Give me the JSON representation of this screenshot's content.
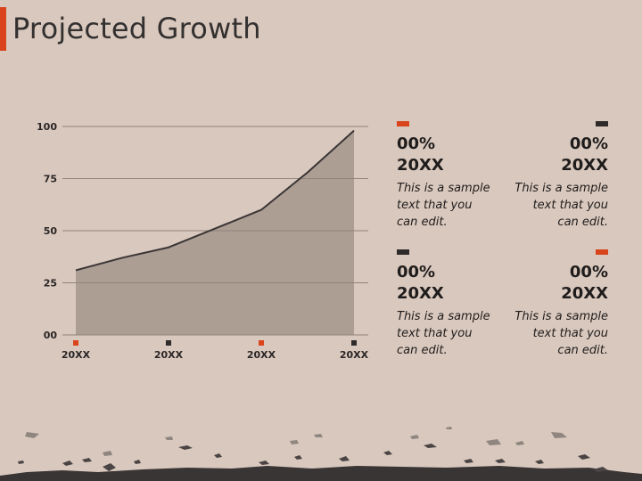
{
  "title": "Projected Growth",
  "colors": {
    "background": "#d9c8bd",
    "accent": "#d9441c",
    "dark": "#2f2b2b",
    "area_fill": "#ad9e94",
    "line": "#3a3535",
    "grid": "#8f847d"
  },
  "chart_data": {
    "type": "area",
    "title": "",
    "xlabel": "",
    "ylabel": "",
    "ylim": [
      0,
      100
    ],
    "yticks": [
      0,
      25,
      50,
      75,
      100
    ],
    "ytick_labels": [
      "00",
      "25",
      "50",
      "75",
      "100"
    ],
    "categories": [
      "20XX",
      "20XX",
      "20XX",
      "20XX"
    ],
    "category_marker_colors": [
      "#d9441c",
      "#2f2b2b",
      "#d9441c",
      "#2f2b2b"
    ],
    "x": [
      0,
      0.5,
      1,
      2,
      2.5,
      3
    ],
    "series": [
      {
        "values": [
          31,
          37,
          42,
          60,
          78,
          98
        ]
      }
    ],
    "grid": true,
    "legend": "none"
  },
  "cards": [
    {
      "marker_color": "#d9441c",
      "percent": "00%",
      "year": "20XX",
      "text": "This is a sample\ntext that you\ncan edit."
    },
    {
      "marker_color": "#2f2b2b",
      "percent": "00%",
      "year": "20XX",
      "text": "This is a sample\ntext that you\ncan edit."
    },
    {
      "marker_color": "#2f2b2b",
      "percent": "00%",
      "year": "20XX",
      "text": "This is a sample\ntext that you\ncan edit."
    },
    {
      "marker_color": "#d9441c",
      "percent": "00%",
      "year": "20XX",
      "text": "This is a sample\ntext that you\ncan edit."
    }
  ]
}
